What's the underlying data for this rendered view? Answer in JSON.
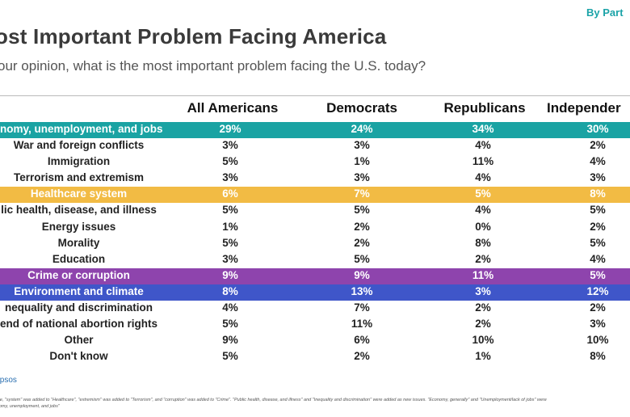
{
  "header": {
    "by_party": "By Part",
    "title": "ost Important Problem Facing America",
    "subtitle": "our opinion, what is the most important problem facing the U.S. today?"
  },
  "columns": [
    "All Americans",
    "Democrats",
    "Republicans",
    "Independer"
  ],
  "rows": [
    {
      "label": "nomy, unemployment, and jobs",
      "values": [
        "29%",
        "24%",
        "34%",
        "30%"
      ],
      "highlight": "#1aa3a3"
    },
    {
      "label": "War and foreign conflicts",
      "values": [
        "3%",
        "3%",
        "4%",
        "2%"
      ],
      "highlight": null
    },
    {
      "label": "Immigration",
      "values": [
        "5%",
        "1%",
        "11%",
        "4%"
      ],
      "highlight": null
    },
    {
      "label": "Terrorism and extremism",
      "values": [
        "3%",
        "3%",
        "4%",
        "3%"
      ],
      "highlight": null
    },
    {
      "label": "Healthcare system",
      "values": [
        "6%",
        "7%",
        "5%",
        "8%"
      ],
      "highlight": "#f2bb44"
    },
    {
      "label": "lic health, disease, and illness",
      "values": [
        "5%",
        "5%",
        "4%",
        "5%"
      ],
      "highlight": null
    },
    {
      "label": "Energy issues",
      "values": [
        "1%",
        "2%",
        "0%",
        "2%"
      ],
      "highlight": null
    },
    {
      "label": "Morality",
      "values": [
        "5%",
        "2%",
        "8%",
        "5%"
      ],
      "highlight": null
    },
    {
      "label": "Education",
      "values": [
        "3%",
        "5%",
        "2%",
        "4%"
      ],
      "highlight": null
    },
    {
      "label": "Crime or corruption",
      "values": [
        "9%",
        "9%",
        "11%",
        "5%"
      ],
      "highlight": "#8e44ad"
    },
    {
      "label": "Environment and climate",
      "values": [
        "8%",
        "13%",
        "3%",
        "12%"
      ],
      "highlight": "#3f56c9"
    },
    {
      "label": "nequality and discrimination",
      "values": [
        "4%",
        "7%",
        "2%",
        "2%"
      ],
      "highlight": null
    },
    {
      "label": "end of national abortion rights",
      "values": [
        "5%",
        "11%",
        "2%",
        "3%"
      ],
      "highlight": null
    },
    {
      "label": "Other",
      "values": [
        "9%",
        "6%",
        "10%",
        "10%"
      ],
      "highlight": null
    },
    {
      "label": "Don't know",
      "values": [
        "5%",
        "2%",
        "1%",
        "8%"
      ],
      "highlight": null
    }
  ],
  "source": "Ipsos",
  "footnote": {
    "line1": "wave, \"system\" was added to \"Healthcare\", \"extremism\" was added to \"Terrorism\", and \"corruption\" was added to \"Crime\". \"Public health, disease, and illness\" and \"Inequality and discrimination\" were added as new issues. \"Economy, generally\" and \"Unemployment/lack of jobs\" were",
    "line2": "conomy, unemployment, and jobs\""
  }
}
